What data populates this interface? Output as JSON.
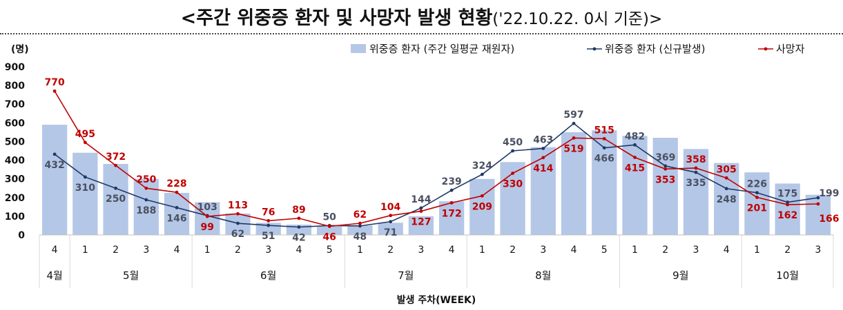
{
  "title": {
    "main": "<주간 위중증 환자 및 사망자 발생 현황",
    "sub": "('22.10.22. 0시 기준)>"
  },
  "chart_data": {
    "type": "bar+line",
    "ylabel": "(명)",
    "xlabel": "발생 주차(WEEK)",
    "ylim": [
      0,
      900
    ],
    "yticks": [
      0,
      100,
      200,
      300,
      400,
      500,
      600,
      700,
      800,
      900
    ],
    "categories": [
      "4",
      "1",
      "2",
      "3",
      "4",
      "1",
      "2",
      "3",
      "4",
      "5",
      "1",
      "2",
      "3",
      "4",
      "1",
      "2",
      "3",
      "4",
      "5",
      "1",
      "2",
      "3",
      "4",
      "1",
      "2",
      "3"
    ],
    "months": [
      {
        "label": "4월",
        "span": 1
      },
      {
        "label": "5월",
        "span": 4
      },
      {
        "label": "6월",
        "span": 5
      },
      {
        "label": "7월",
        "span": 4
      },
      {
        "label": "8월",
        "span": 5
      },
      {
        "label": "9월",
        "span": 4
      },
      {
        "label": "10월",
        "span": 3
      }
    ],
    "legend_position": "top-right",
    "series": [
      {
        "name": "위중증 환자 (주간 일평균 재원자)",
        "kind": "bar",
        "color": "#b4c7e7",
        "values": [
          590,
          440,
          380,
          300,
          225,
          175,
          115,
          65,
          55,
          45,
          50,
          65,
          100,
          180,
          300,
          390,
          470,
          550,
          560,
          530,
          520,
          460,
          385,
          335,
          275,
          215
        ]
      },
      {
        "name": "위중증 환자 (신규발생)",
        "kind": "line",
        "color": "#1f3864",
        "values": [
          432,
          310,
          250,
          188,
          146,
          103,
          62,
          51,
          42,
          50,
          48,
          71,
          144,
          239,
          324,
          450,
          463,
          597,
          466,
          482,
          369,
          335,
          248,
          226,
          175,
          199
        ]
      },
      {
        "name": "사망자",
        "kind": "line",
        "color": "#c00000",
        "values": [
          770,
          495,
          372,
          250,
          228,
          99,
          113,
          76,
          89,
          46,
          62,
          104,
          127,
          172,
          209,
          330,
          414,
          519,
          515,
          415,
          353,
          358,
          305,
          201,
          162,
          166
        ]
      }
    ]
  }
}
